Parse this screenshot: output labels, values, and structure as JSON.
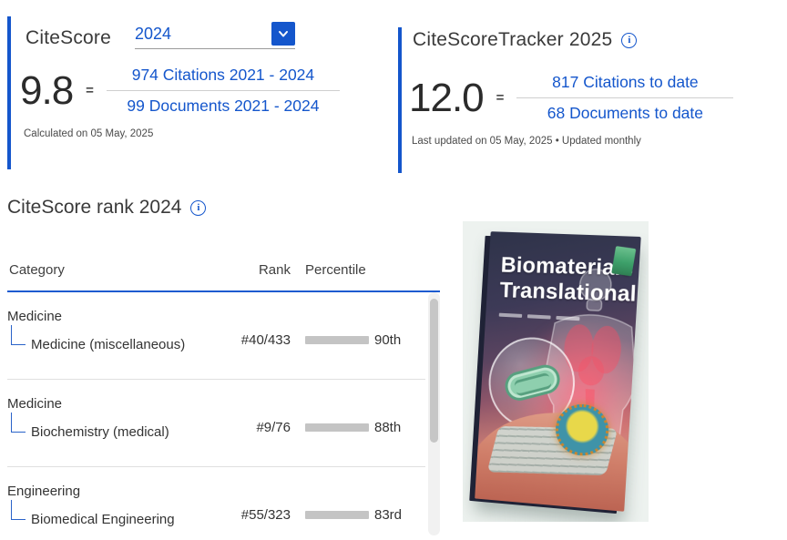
{
  "colors": {
    "accent_blue": "#1456cc",
    "bar_gray": "#c4c4c4",
    "text_dark": "#333333",
    "text_muted": "#4a4a4a"
  },
  "icons": {
    "info_glyph": "i"
  },
  "citescore": {
    "title": "CiteScore",
    "year_selected": "2024",
    "score": "9.8",
    "equals": "=",
    "numerator": "974 Citations 2021 - 2024",
    "denominator": "99 Documents 2021 - 2024",
    "footnote": "Calculated on 05 May, 2025"
  },
  "tracker": {
    "title": "CiteScoreTracker 2025",
    "score": "12.0",
    "equals": "=",
    "numerator": "817 Citations to date",
    "denominator": "68 Documents to date",
    "footnote": "Last updated on 05 May, 2025 • Updated monthly"
  },
  "rank": {
    "title": "CiteScore rank 2024",
    "columns": {
      "category": "Category",
      "rank": "Rank",
      "percentile": "Percentile"
    },
    "rows": [
      {
        "parent": "Medicine",
        "subcategory": "Medicine (miscellaneous)",
        "rank": "#40/433",
        "percentile_label": "90th",
        "percentile_value": 90
      },
      {
        "parent": "Medicine",
        "subcategory": "Biochemistry (medical)",
        "rank": "#9/76",
        "percentile_label": "88th",
        "percentile_value": 88
      },
      {
        "parent": "Engineering",
        "subcategory": "Biomedical Engineering",
        "rank": "#55/323",
        "percentile_label": "83rd",
        "percentile_value": 83
      }
    ]
  },
  "cover": {
    "title_line1": "Biomaterials",
    "title_line2": "Translational"
  }
}
